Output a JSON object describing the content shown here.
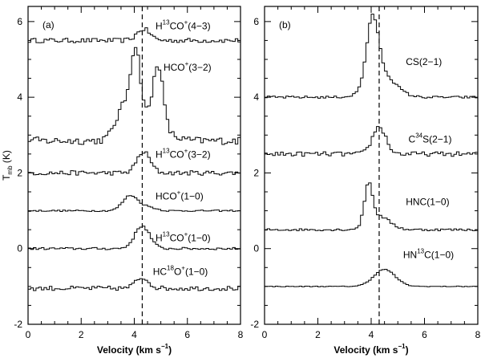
{
  "chart_data": [
    {
      "type": "line",
      "panel_label": "(a)",
      "xlabel_main": "Velocity",
      "xlabel_unit": "(km s",
      "xlabel_exp": "−1",
      "xlabel_close": ")",
      "ylabel_main": "T",
      "ylabel_sub": "mb",
      "ylabel_unit": "(K)",
      "xlim": [
        0,
        8
      ],
      "ylim": [
        -2,
        6.4
      ],
      "xticks": [
        0,
        2,
        4,
        6,
        8
      ],
      "yticks": [
        -2,
        0,
        2,
        4,
        6
      ],
      "dashed_velocity": 4.3,
      "series": [
        {
          "label_pre": "H",
          "label_sup": "13",
          "label_mid": "CO",
          "label_sup2": "+",
          "label_post": "(4−3)",
          "label_x": 4.8,
          "label_y": 5.8,
          "baseline": 5.5,
          "noise": 0.06,
          "components": [
            {
              "v": 4.35,
              "a": 0.3,
              "w": 0.25
            }
          ]
        },
        {
          "label_pre": "HCO",
          "label_sup": "+",
          "label_mid": "",
          "label_sup2": "",
          "label_post": "(3−2)",
          "label_x": 5.1,
          "label_y": 4.7,
          "baseline": 2.85,
          "noise": 0.1,
          "components": [
            {
              "v": 3.6,
              "a": 0.7,
              "w": 0.3
            },
            {
              "v": 4.05,
              "a": 1.8,
              "w": 0.18
            },
            {
              "v": 4.9,
              "a": 1.6,
              "w": 0.18
            },
            {
              "v": 4.45,
              "a": 0.6,
              "w": 0.6
            }
          ]
        },
        {
          "label_pre": "H",
          "label_sup": "13",
          "label_mid": "CO",
          "label_sup2": "+",
          "label_post": "(3−2)",
          "label_x": 4.8,
          "label_y": 2.4,
          "baseline": 2.0,
          "noise": 0.06,
          "components": [
            {
              "v": 4.35,
              "a": 0.55,
              "w": 0.25
            }
          ]
        },
        {
          "label_pre": "HCO",
          "label_sup": "+",
          "label_mid": "",
          "label_sup2": "",
          "label_post": "(1−0)",
          "label_x": 4.8,
          "label_y": 1.3,
          "baseline": 1.0,
          "noise": 0.02,
          "components": [
            {
              "v": 3.85,
              "a": 0.4,
              "w": 0.28
            },
            {
              "v": 4.5,
              "a": 0.1,
              "w": 0.3
            }
          ]
        },
        {
          "label_pre": "H",
          "label_sup": "13",
          "label_mid": "CO",
          "label_sup2": "+",
          "label_post": "(1−0)",
          "label_x": 4.8,
          "label_y": 0.2,
          "baseline": 0.0,
          "noise": 0.03,
          "components": [
            {
              "v": 4.3,
              "a": 0.6,
              "w": 0.28
            }
          ]
        },
        {
          "label_pre": "HC",
          "label_sup": "18",
          "label_mid": "O",
          "label_sup2": "+",
          "label_post": "(1−0)",
          "label_x": 4.7,
          "label_y": -0.7,
          "baseline": -1.05,
          "noise": 0.06,
          "components": [
            {
              "v": 4.3,
              "a": 0.28,
              "w": 0.25
            }
          ]
        }
      ]
    },
    {
      "type": "line",
      "panel_label": "(b)",
      "xlabel_main": "Velocity",
      "xlabel_unit": "(km s",
      "xlabel_exp": "−1",
      "xlabel_close": ")",
      "xlim": [
        0,
        8
      ],
      "ylim": [
        -2,
        6.4
      ],
      "xticks": [
        0,
        2,
        4,
        6,
        8
      ],
      "yticks": [
        -2,
        0,
        2,
        4,
        6
      ],
      "dashed_velocity": 4.3,
      "series": [
        {
          "label_pre": "CS(2−1)",
          "label_sup": "",
          "label_mid": "",
          "label_sup2": "",
          "label_post": "",
          "label_x": 5.3,
          "label_y": 4.85,
          "baseline": 4.0,
          "noise": 0.03,
          "components": [
            {
              "v": 4.05,
              "a": 1.7,
              "w": 0.22
            },
            {
              "v": 4.4,
              "a": 0.6,
              "w": 0.5
            }
          ]
        },
        {
          "label_pre": "C",
          "label_sup": "34",
          "label_mid": "S(2−1)",
          "label_sup2": "",
          "label_post": "",
          "label_x": 5.4,
          "label_y": 2.8,
          "baseline": 2.5,
          "noise": 0.06,
          "components": [
            {
              "v": 4.3,
              "a": 0.72,
              "w": 0.25
            }
          ]
        },
        {
          "label_pre": "HNC(1−0)",
          "label_sup": "",
          "label_mid": "",
          "label_sup2": "",
          "label_post": "",
          "label_x": 5.3,
          "label_y": 1.15,
          "baseline": 0.5,
          "noise": 0.03,
          "components": [
            {
              "v": 3.9,
              "a": 1.05,
              "w": 0.15
            },
            {
              "v": 4.3,
              "a": 0.35,
              "w": 0.4
            }
          ]
        },
        {
          "label_pre": "HN",
          "label_sup": "13",
          "label_mid": "C(1−0)",
          "label_sup2": "",
          "label_post": "",
          "label_x": 5.2,
          "label_y": -0.25,
          "baseline": -1.0,
          "noise": 0.01,
          "components": [
            {
              "v": 4.5,
              "a": 0.45,
              "w": 0.4
            }
          ]
        }
      ]
    }
  ]
}
